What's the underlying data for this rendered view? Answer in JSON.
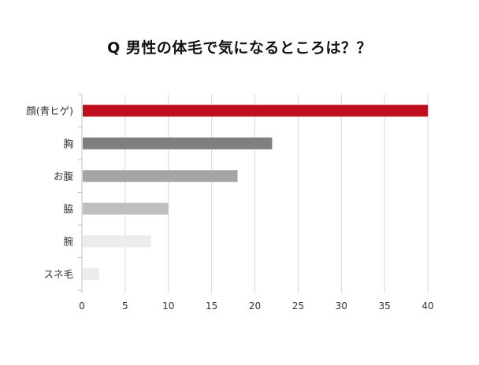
{
  "chart_data": {
    "type": "bar",
    "orientation": "horizontal",
    "title": "Q 男性の体毛で気になるところは？？",
    "categories": [
      "顔(青ヒゲ)",
      "胸",
      "お腹",
      "脇",
      "腕",
      "スネ毛"
    ],
    "values": [
      40,
      22,
      18,
      10,
      8,
      2
    ],
    "bar_colors": [
      "#c00d1e",
      "#7f7f7f",
      "#a5a5a5",
      "#bfbfbf",
      "#ececec",
      "#ececec"
    ],
    "xlim": [
      0,
      40
    ],
    "xticks": [
      0,
      5,
      10,
      15,
      20,
      25,
      30,
      35,
      40
    ],
    "xlabel": "",
    "ylabel": "",
    "grid": true,
    "legend": "none"
  }
}
